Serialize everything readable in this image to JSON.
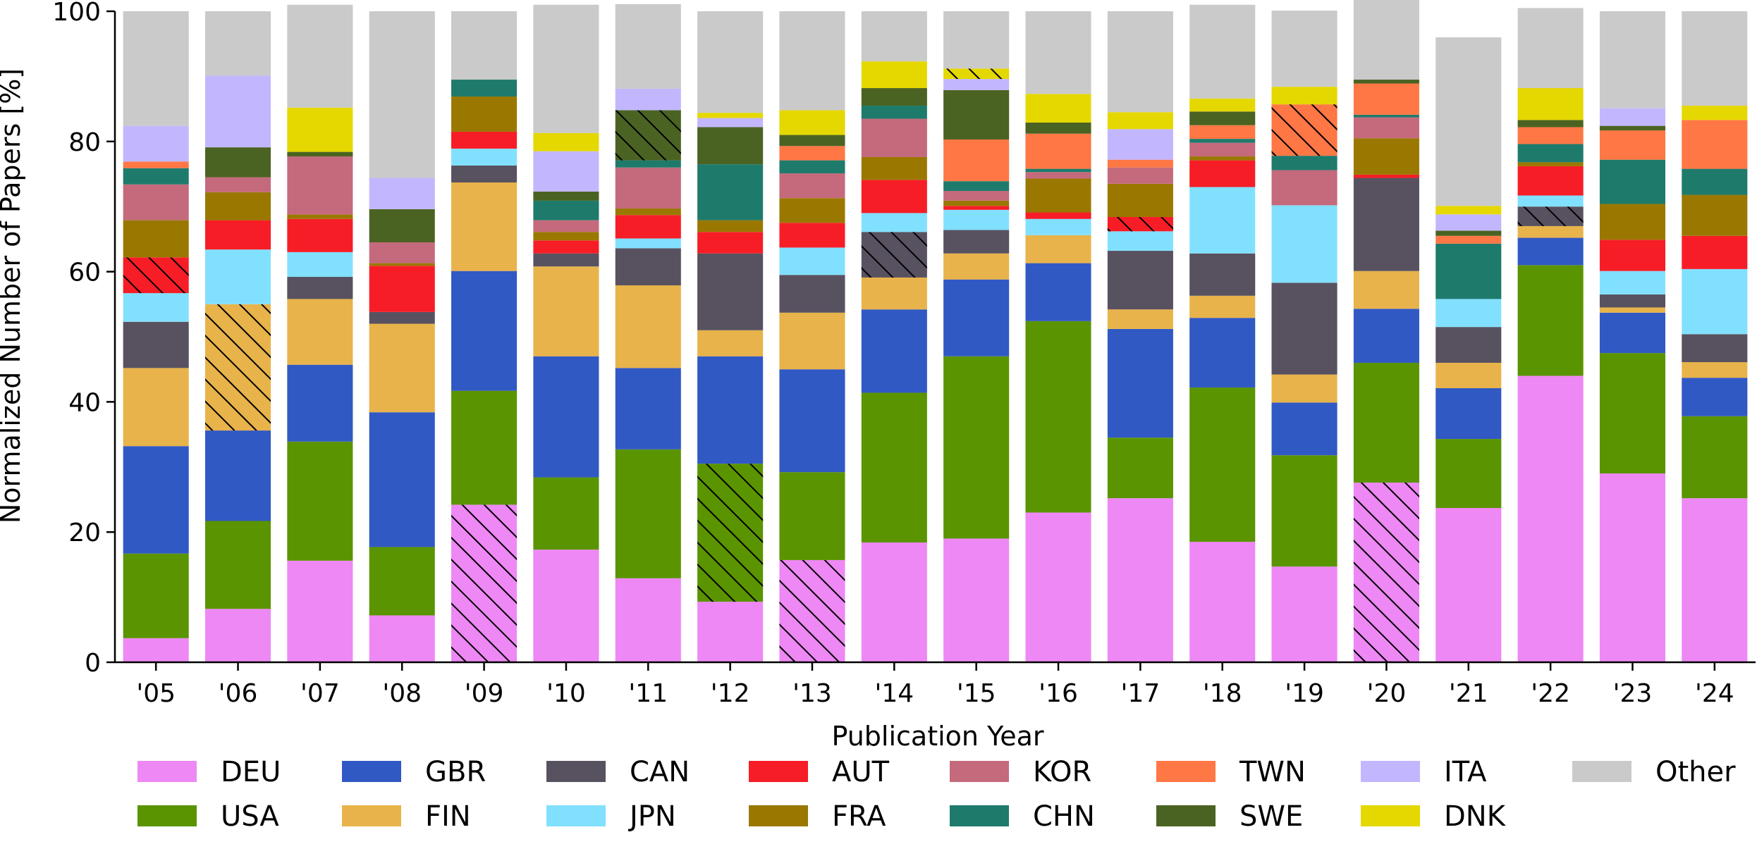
{
  "chart_data": {
    "type": "bar",
    "stacked": true,
    "normalized": true,
    "xlabel": "Publication Year",
    "ylabel": "Normalized Number of Papers [%]",
    "ylim": [
      0,
      100
    ],
    "yticks": [
      0,
      20,
      40,
      60,
      80,
      100
    ],
    "grid": false,
    "legend_position": "bottom",
    "categories": [
      "'05",
      "'06",
      "'07",
      "'08",
      "'09",
      "'10",
      "'11",
      "'12",
      "'13",
      "'14",
      "'15",
      "'16",
      "'17",
      "'18",
      "'19",
      "'20",
      "'21",
      "'22",
      "'23",
      "'24"
    ],
    "series": [
      {
        "name": "DEU",
        "color": "#EE88F5",
        "values": [
          3.7,
          8.2,
          15.6,
          7.2,
          24.2,
          17.3,
          12.9,
          9.3,
          15.7,
          18.4,
          19.0,
          23.0,
          25.2,
          18.5,
          14.7,
          27.6,
          23.7,
          44.0,
          29.0,
          25.2
        ]
      },
      {
        "name": "USA",
        "color": "#5A9400",
        "values": [
          13.0,
          13.5,
          18.3,
          10.5,
          17.5,
          11.1,
          19.8,
          21.2,
          13.5,
          23.0,
          28.0,
          29.4,
          9.3,
          23.7,
          17.1,
          18.4,
          10.6,
          17.0,
          18.5,
          12.6
        ]
      },
      {
        "name": "GBR",
        "color": "#3159C4",
        "values": [
          16.5,
          13.9,
          11.8,
          20.7,
          18.4,
          18.6,
          12.5,
          16.5,
          15.8,
          12.8,
          11.8,
          8.9,
          16.7,
          10.7,
          8.1,
          8.3,
          7.8,
          4.2,
          6.2,
          5.9
        ]
      },
      {
        "name": "FIN",
        "color": "#E8B34A",
        "values": [
          12.0,
          19.4,
          10.1,
          13.6,
          13.6,
          13.8,
          12.7,
          4.0,
          8.7,
          4.9,
          4.0,
          4.3,
          3.0,
          3.4,
          4.3,
          5.8,
          3.9,
          1.8,
          0.8,
          2.4
        ]
      },
      {
        "name": "CAN",
        "color": "#585260",
        "values": [
          7.1,
          0,
          3.4,
          1.8,
          2.6,
          2.0,
          5.7,
          11.8,
          5.8,
          7.0,
          3.6,
          0,
          9.0,
          6.5,
          14.1,
          14.3,
          5.5,
          3.0,
          2.0,
          4.3
        ]
      },
      {
        "name": "JPN",
        "color": "#82E0FF",
        "values": [
          4.4,
          8.4,
          3.8,
          0,
          2.6,
          0,
          1.5,
          0,
          4.2,
          2.9,
          3.1,
          2.5,
          3.0,
          10.2,
          11.9,
          0,
          4.3,
          1.7,
          3.6,
          10.0
        ]
      },
      {
        "name": "AUT",
        "color": "#F71D26",
        "values": [
          5.5,
          4.5,
          5.1,
          7.1,
          2.6,
          2.0,
          3.6,
          3.3,
          3.8,
          5.1,
          0.6,
          1.0,
          2.2,
          4.1,
          0,
          0.5,
          0,
          4.5,
          4.8,
          5.1
        ]
      },
      {
        "name": "FRA",
        "color": "#9A7800",
        "values": [
          5.7,
          4.3,
          0.7,
          0.4,
          5.4,
          1.3,
          1.0,
          1.8,
          3.8,
          3.5,
          0.8,
          5.2,
          5.1,
          0.6,
          0,
          5.6,
          0,
          0.6,
          5.5,
          6.3
        ]
      },
      {
        "name": "KOR",
        "color": "#C46A7C",
        "values": [
          5.5,
          2.3,
          8.9,
          3.2,
          0,
          1.8,
          6.3,
          0,
          3.8,
          5.9,
          1.5,
          1.0,
          2.5,
          2.1,
          5.4,
          3.2,
          0,
          0,
          0,
          0
        ]
      },
      {
        "name": "CHN",
        "color": "#1E7B6C",
        "values": [
          2.5,
          0,
          0,
          0,
          2.6,
          3.0,
          1.1,
          8.6,
          2.0,
          2.0,
          1.5,
          0.5,
          0,
          0.6,
          2.2,
          0.4,
          8.5,
          2.8,
          6.8,
          4.0
        ]
      },
      {
        "name": "TWN",
        "color": "#FF7744",
        "values": [
          1.0,
          0,
          0,
          0,
          0,
          0,
          0,
          0,
          2.2,
          0,
          6.4,
          5.4,
          1.2,
          2.1,
          7.9,
          4.8,
          1.2,
          2.6,
          4.5,
          7.5
        ]
      },
      {
        "name": "SWE",
        "color": "#4B6322",
        "values": [
          0,
          4.6,
          0.7,
          5.1,
          0,
          1.4,
          7.7,
          5.7,
          1.7,
          2.7,
          7.6,
          1.7,
          0,
          2.1,
          0,
          0.6,
          0.8,
          1.1,
          0.7,
          0
        ]
      },
      {
        "name": "ITA",
        "color": "#C2B7FF",
        "values": [
          5.5,
          11.0,
          0,
          4.8,
          0,
          6.2,
          3.3,
          1.4,
          0,
          0,
          1.7,
          0,
          4.7,
          0,
          0,
          0,
          2.5,
          0,
          2.7,
          0
        ]
      },
      {
        "name": "DNK",
        "color": "#E5D800",
        "values": [
          0,
          0,
          6.8,
          0,
          0,
          2.8,
          0,
          0.8,
          3.8,
          4.1,
          1.6,
          4.4,
          2.6,
          2.0,
          2.7,
          0,
          1.3,
          4.9,
          0,
          2.2
        ],
        "hatch": [
          false,
          false,
          false,
          false,
          false,
          false,
          false,
          false,
          false,
          false,
          true,
          false,
          false,
          false,
          false,
          false,
          false,
          false,
          false,
          false
        ]
      },
      {
        "name": "Other",
        "color": "#CACACA",
        "values": [
          17.6,
          9.9,
          15.8,
          25.6,
          10.5,
          19.7,
          13.0,
          15.6,
          15.2,
          7.7,
          8.8,
          12.7,
          15.5,
          14.4,
          11.7,
          16.5,
          25.9,
          12.3,
          14.9,
          14.5
        ]
      }
    ],
    "hatched_segments": [
      {
        "category": "'05",
        "series": "AUT"
      },
      {
        "category": "'06",
        "series": "FIN"
      },
      {
        "category": "'09",
        "series": "DEU"
      },
      {
        "category": "'11",
        "series": "SWE"
      },
      {
        "category": "'12",
        "series": "USA"
      },
      {
        "category": "'13",
        "series": "DEU"
      },
      {
        "category": "'14",
        "series": "CAN"
      },
      {
        "category": "'15",
        "series": "DNK"
      },
      {
        "category": "'17",
        "series": "AUT"
      },
      {
        "category": "'19",
        "series": "TWN"
      },
      {
        "category": "'20",
        "series": "DEU"
      },
      {
        "category": "'21",
        "series": "FRA"
      },
      {
        "category": "'22",
        "series": "CAN"
      }
    ],
    "legend_order": [
      "DEU",
      "GBR",
      "CAN",
      "AUT",
      "KOR",
      "TWN",
      "ITA",
      "Other",
      "USA",
      "FIN",
      "JPN",
      "FRA",
      "CHN",
      "SWE",
      "DNK"
    ]
  }
}
